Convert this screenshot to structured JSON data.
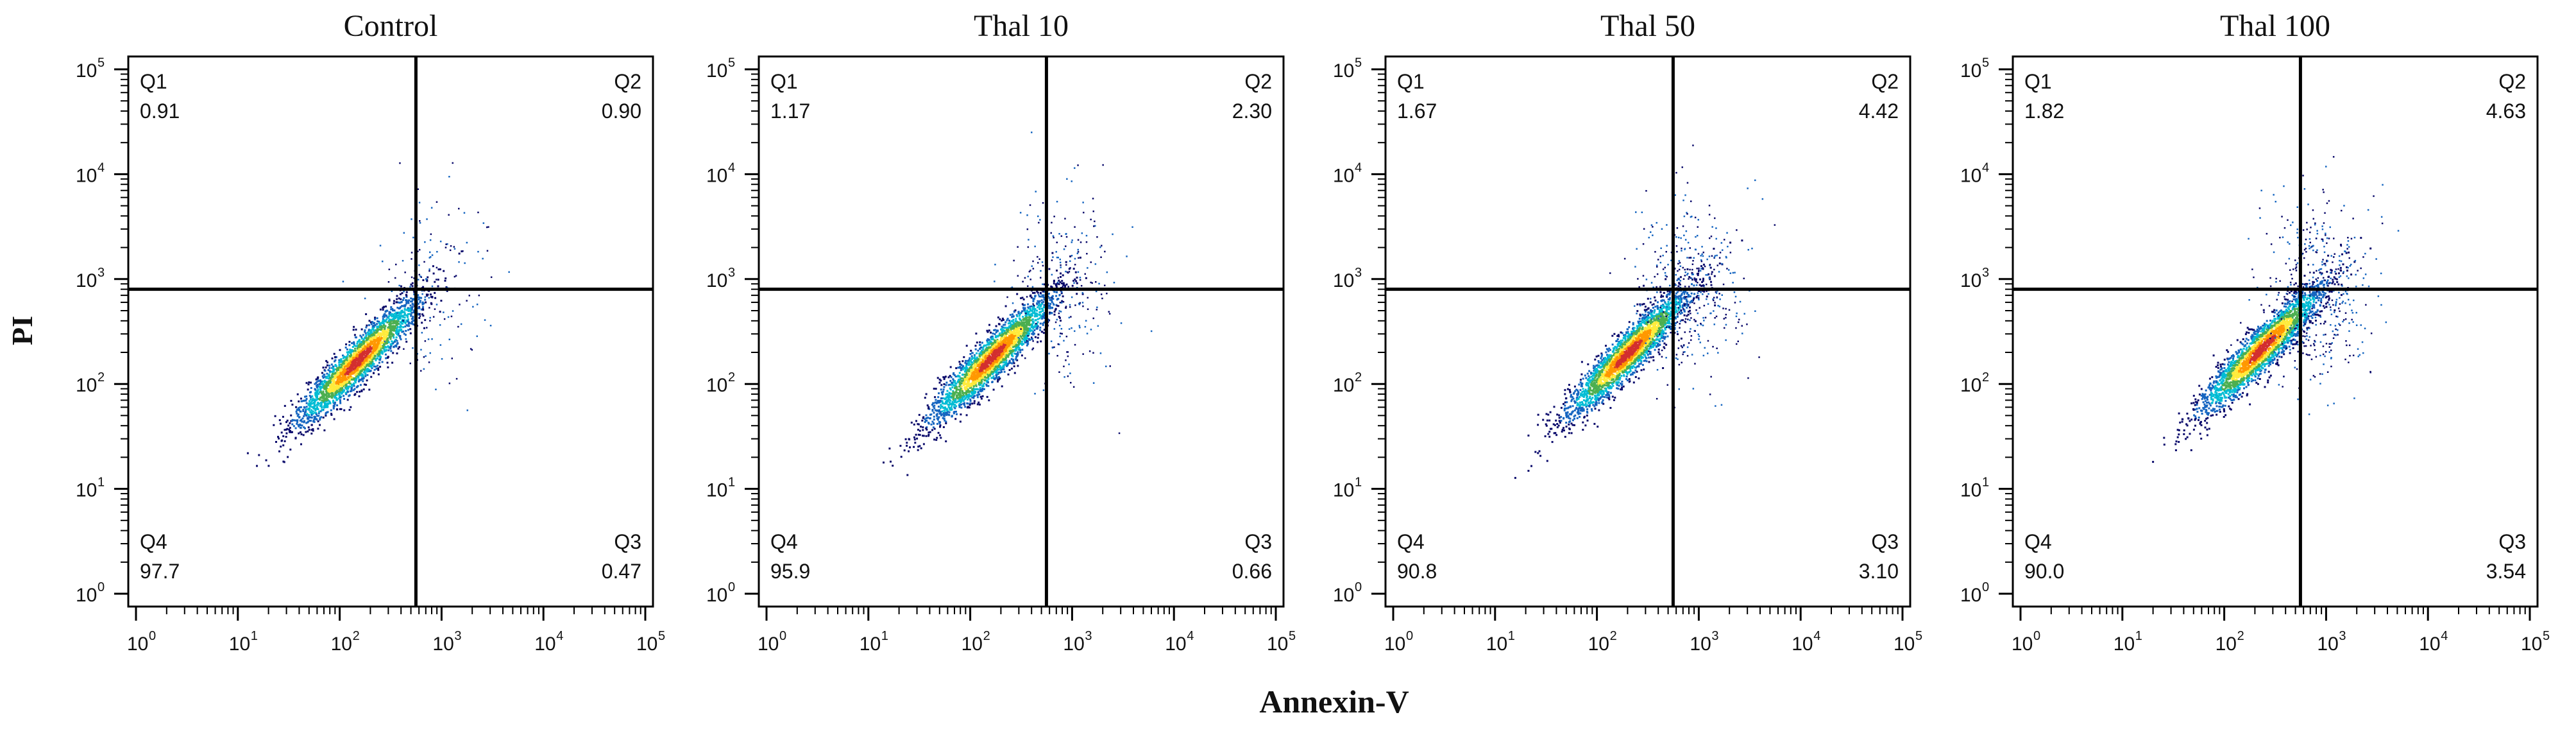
{
  "figure": {
    "y_axis_label": "PI",
    "x_axis_label": "Annexin-V"
  },
  "chart_data": [
    {
      "type": "scatter",
      "title": "Control",
      "xlabel": "Annexin-V",
      "ylabel": "PI",
      "x_scale": "log10",
      "y_scale": "log10",
      "xlim": [
        1,
        100000
      ],
      "ylim": [
        1,
        100000
      ],
      "x_ticks": [
        "10",
        "10",
        "10",
        "10",
        "10",
        "10"
      ],
      "x_tick_exponents": [
        "0",
        "1",
        "2",
        "3",
        "4",
        "5"
      ],
      "y_ticks": [
        "10",
        "10",
        "10",
        "10",
        "10",
        "10"
      ],
      "y_tick_exponents": [
        "0",
        "1",
        "2",
        "3",
        "4",
        "5"
      ],
      "gate": {
        "x": 560,
        "y": 800
      },
      "quadrants": [
        {
          "name": "Q1",
          "value": "0.91",
          "position": "top-left"
        },
        {
          "name": "Q2",
          "value": "0.90",
          "position": "top-right"
        },
        {
          "name": "Q3",
          "value": "0.47",
          "position": "bottom-right"
        },
        {
          "name": "Q4",
          "value": "97.7",
          "position": "bottom-left"
        }
      ],
      "population_center": {
        "x": 150,
        "y": 170
      },
      "density_colors": [
        "#0a0a6b",
        "#1565c0",
        "#00bcd4",
        "#4caf50",
        "#ffeb3b",
        "#ff9800",
        "#d32f2f"
      ]
    },
    {
      "type": "scatter",
      "title": "Thal 10",
      "xlabel": "Annexin-V",
      "ylabel": "PI",
      "x_scale": "log10",
      "y_scale": "log10",
      "xlim": [
        1,
        100000
      ],
      "ylim": [
        1,
        100000
      ],
      "x_ticks": [
        "10",
        "10",
        "10",
        "10",
        "10",
        "10"
      ],
      "x_tick_exponents": [
        "0",
        "1",
        "2",
        "3",
        "4",
        "5"
      ],
      "y_ticks": [
        "10",
        "10",
        "10",
        "10",
        "10",
        "10"
      ],
      "y_tick_exponents": [
        "0",
        "1",
        "2",
        "3",
        "4",
        "5"
      ],
      "gate": {
        "x": 560,
        "y": 800
      },
      "quadrants": [
        {
          "name": "Q1",
          "value": "1.17",
          "position": "top-left"
        },
        {
          "name": "Q2",
          "value": "2.30",
          "position": "top-right"
        },
        {
          "name": "Q3",
          "value": "0.66",
          "position": "bottom-right"
        },
        {
          "name": "Q4",
          "value": "95.9",
          "position": "bottom-left"
        }
      ],
      "population_center": {
        "x": 160,
        "y": 180
      },
      "density_colors": [
        "#0a0a6b",
        "#1565c0",
        "#00bcd4",
        "#4caf50",
        "#ffeb3b",
        "#ff9800",
        "#d32f2f"
      ]
    },
    {
      "type": "scatter",
      "title": "Thal 50",
      "xlabel": "Annexin-V",
      "ylabel": "PI",
      "x_scale": "log10",
      "y_scale": "log10",
      "xlim": [
        1,
        100000
      ],
      "ylim": [
        1,
        100000
      ],
      "x_ticks": [
        "10",
        "10",
        "10",
        "10",
        "10",
        "10"
      ],
      "x_tick_exponents": [
        "0",
        "1",
        "2",
        "3",
        "4",
        "5"
      ],
      "y_ticks": [
        "10",
        "10",
        "10",
        "10",
        "10",
        "10"
      ],
      "y_tick_exponents": [
        "0",
        "1",
        "2",
        "3",
        "4",
        "5"
      ],
      "gate": {
        "x": 560,
        "y": 800
      },
      "quadrants": [
        {
          "name": "Q1",
          "value": "1.67",
          "position": "top-left"
        },
        {
          "name": "Q2",
          "value": "4.42",
          "position": "top-right"
        },
        {
          "name": "Q3",
          "value": "3.10",
          "position": "bottom-right"
        },
        {
          "name": "Q4",
          "value": "90.8",
          "position": "bottom-left"
        }
      ],
      "population_center": {
        "x": 200,
        "y": 200
      },
      "density_colors": [
        "#0a0a6b",
        "#1565c0",
        "#00bcd4",
        "#4caf50",
        "#ffeb3b",
        "#ff9800",
        "#d32f2f"
      ]
    },
    {
      "type": "scatter",
      "title": "Thal 100",
      "xlabel": "Annexin-V",
      "ylabel": "PI",
      "x_scale": "log10",
      "y_scale": "log10",
      "xlim": [
        1,
        100000
      ],
      "ylim": [
        1,
        100000
      ],
      "x_ticks": [
        "10",
        "10",
        "10",
        "10",
        "10",
        "10"
      ],
      "x_tick_exponents": [
        "0",
        "1",
        "2",
        "3",
        "4",
        "5"
      ],
      "y_ticks": [
        "10",
        "10",
        "10",
        "10",
        "10",
        "10"
      ],
      "y_tick_exponents": [
        "0",
        "1",
        "2",
        "3",
        "4",
        "5"
      ],
      "gate": {
        "x": 560,
        "y": 800
      },
      "quadrants": [
        {
          "name": "Q1",
          "value": "1.82",
          "position": "top-left"
        },
        {
          "name": "Q2",
          "value": "4.63",
          "position": "top-right"
        },
        {
          "name": "Q3",
          "value": "3.54",
          "position": "bottom-right"
        },
        {
          "name": "Q4",
          "value": "90.0",
          "position": "bottom-left"
        }
      ],
      "population_center": {
        "x": 230,
        "y": 220
      },
      "density_colors": [
        "#0a0a6b",
        "#1565c0",
        "#00bcd4",
        "#4caf50",
        "#ffeb3b",
        "#ff9800",
        "#d32f2f"
      ]
    }
  ]
}
